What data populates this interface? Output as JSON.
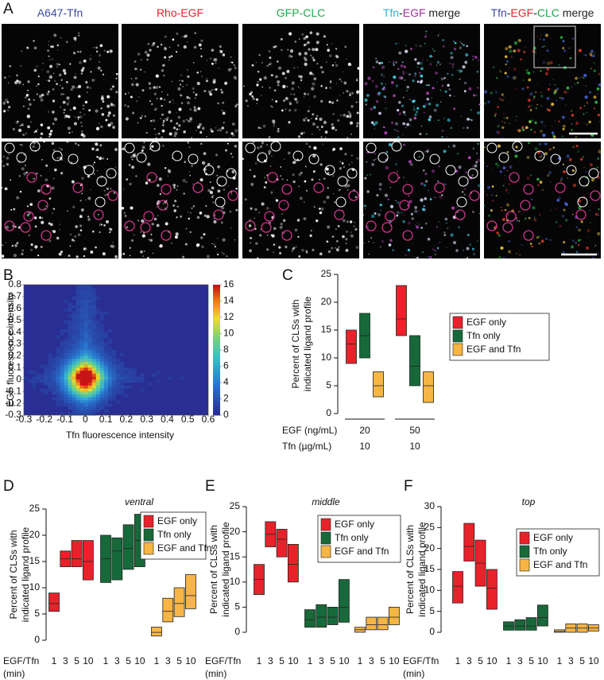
{
  "figure": {
    "panel_a": {
      "label": "A",
      "columns": [
        {
          "parts": [
            {
              "text": "A647-Tfn",
              "color": "#3b4aa6"
            }
          ]
        },
        {
          "parts": [
            {
              "text": "Rho-EGF",
              "color": "#e2232a"
            }
          ]
        },
        {
          "parts": [
            {
              "text": "GFP-CLC",
              "color": "#1fa64a"
            }
          ]
        },
        {
          "parts": [
            {
              "text": "Tfn",
              "color": "#2bb5d8"
            },
            {
              "text": "-",
              "color": "#222222"
            },
            {
              "text": "EGF",
              "color": "#9b2f9c"
            },
            {
              "text": " merge",
              "color": "#222222"
            }
          ]
        },
        {
          "parts": [
            {
              "text": "Tfn",
              "color": "#3b4aa6"
            },
            {
              "text": "-",
              "color": "#222222"
            },
            {
              "text": "EGF",
              "color": "#e2232a"
            },
            {
              "text": "-",
              "color": "#222222"
            },
            {
              "text": "CLC",
              "color": "#1fa64a"
            },
            {
              "text": " merge",
              "color": "#222222"
            }
          ]
        }
      ]
    }
  },
  "chart_data": [
    {
      "type": "heatmap",
      "panel": "B",
      "xlabel": "Tfn fluorescence intensity",
      "ylabel": "EGF fluorescence intensity",
      "xlim": [
        -0.3,
        0.6
      ],
      "xticks": [
        -0.3,
        -0.2,
        -0.1,
        0,
        0.1,
        0.2,
        0.3,
        0.4,
        0.5,
        0.6
      ],
      "ylim": [
        -0.3,
        0.8
      ],
      "yticks": [
        -0.3,
        -0.2,
        -0.1,
        0,
        0.1,
        0.2,
        0.3,
        0.4,
        0.5,
        0.6,
        0.7,
        0.8
      ],
      "colorbar": {
        "lim": [
          0,
          16
        ],
        "ticks": [
          0,
          2,
          4,
          6,
          8,
          10,
          12,
          14,
          16
        ]
      }
    },
    {
      "type": "floating-box",
      "panel": "C",
      "ylabel": [
        "Percent of CLSs with",
        "indicated ligand profile"
      ],
      "ylim": [
        0,
        25
      ],
      "yticks": [
        0,
        5,
        10,
        15,
        20,
        25
      ],
      "legend": "outside right",
      "x_rows": [
        {
          "label": "EGF (ng/mL)",
          "values": [
            "20",
            "50"
          ]
        },
        {
          "label": "Tfn (µg/mL)",
          "values": [
            "10",
            "10"
          ]
        }
      ],
      "series": [
        {
          "name": "EGF only",
          "color": "#e8222b",
          "low": [
            9,
            14
          ],
          "median": [
            12.5,
            17
          ],
          "high": [
            15,
            23
          ]
        },
        {
          "name": "Tfn only",
          "color": "#17693a",
          "low": [
            10,
            5
          ],
          "median": [
            14,
            8.5
          ],
          "high": [
            18,
            14
          ]
        },
        {
          "name": "EGF and Tfn",
          "color": "#f7b545",
          "low": [
            3,
            2
          ],
          "median": [
            5,
            5
          ],
          "high": [
            7.5,
            7.5
          ]
        }
      ]
    },
    {
      "type": "floating-box",
      "panel": "D",
      "title": "ventral",
      "ylabel": [
        "Percent of CLSs with",
        "indicated ligand profile"
      ],
      "ylim": [
        0,
        25
      ],
      "yticks": [
        0,
        5,
        10,
        15,
        20,
        25
      ],
      "legend": "upper right",
      "x_label": [
        "EGF/Tfn",
        "(min)"
      ],
      "categories": [
        "1",
        "3",
        "5",
        "10"
      ],
      "series": [
        {
          "name": "EGF only",
          "color": "#e8222b",
          "low": [
            5.5,
            14,
            14,
            11.5
          ],
          "median": [
            7,
            15.5,
            15.5,
            15
          ],
          "high": [
            9,
            17,
            19,
            19
          ]
        },
        {
          "name": "Tfn only",
          "color": "#17693a",
          "low": [
            11,
            11.5,
            13.5,
            14
          ],
          "median": [
            15.5,
            17,
            17.5,
            19
          ],
          "high": [
            20,
            19.5,
            22,
            24
          ]
        },
        {
          "name": "EGF and Tfn",
          "color": "#f7b545",
          "low": [
            0.8,
            3.5,
            4.5,
            6
          ],
          "median": [
            1.5,
            5.5,
            7,
            8.5
          ],
          "high": [
            2.5,
            8,
            10,
            12.5
          ]
        }
      ]
    },
    {
      "type": "floating-box",
      "panel": "E",
      "title": "middle",
      "ylabel": [
        "Percent of CLSs with",
        "indicated ligand profile"
      ],
      "ylim": [
        0,
        25
      ],
      "yticks": [
        0,
        5,
        10,
        15,
        20,
        25
      ],
      "legend": "upper right",
      "x_label": [
        "EGF/Tfn",
        "(min)"
      ],
      "categories": [
        "1",
        "3",
        "5",
        "10"
      ],
      "series": [
        {
          "name": "EGF only",
          "color": "#e8222b",
          "low": [
            7.5,
            17,
            15,
            10
          ],
          "median": [
            10.5,
            19.5,
            18.5,
            13.5
          ],
          "high": [
            13.5,
            22,
            20.5,
            17.5
          ]
        },
        {
          "name": "Tfn only",
          "color": "#17693a",
          "low": [
            1,
            1,
            1.5,
            2
          ],
          "median": [
            2.5,
            3,
            3,
            5
          ],
          "high": [
            4.5,
            5.5,
            5,
            10.5
          ]
        },
        {
          "name": "EGF and Tfn",
          "color": "#f7b545",
          "low": [
            0,
            0.5,
            0.5,
            1.5
          ],
          "median": [
            0.5,
            1.5,
            1.5,
            3
          ],
          "high": [
            1,
            3,
            3,
            5
          ]
        }
      ]
    },
    {
      "type": "floating-box",
      "panel": "F",
      "title": "top",
      "ylabel": [
        "Percent of CLSs with",
        "indicated ligand profile"
      ],
      "ylim": [
        0,
        30
      ],
      "yticks": [
        0,
        5,
        10,
        15,
        20,
        25,
        30
      ],
      "legend": "upper right",
      "x_label": [
        "EGF/Tfn",
        "(min)"
      ],
      "categories": [
        "1",
        "3",
        "5",
        "10"
      ],
      "series": [
        {
          "name": "EGF only",
          "color": "#e8222b",
          "low": [
            7,
            17,
            11,
            5.5
          ],
          "median": [
            11,
            20.5,
            16.5,
            10.5
          ],
          "high": [
            14.5,
            26,
            22,
            15
          ]
        },
        {
          "name": "Tfn only",
          "color": "#17693a",
          "low": [
            0.5,
            0.5,
            0.5,
            1.5
          ],
          "median": [
            1.5,
            1.5,
            1.5,
            3.5
          ],
          "high": [
            2.5,
            3,
            3.5,
            6.5
          ]
        },
        {
          "name": "EGF and Tfn",
          "color": "#f7b545",
          "low": [
            0,
            0,
            0,
            0.3
          ],
          "median": [
            0.2,
            1,
            1,
            1
          ],
          "high": [
            0.6,
            2,
            2,
            1.8
          ]
        }
      ]
    }
  ]
}
